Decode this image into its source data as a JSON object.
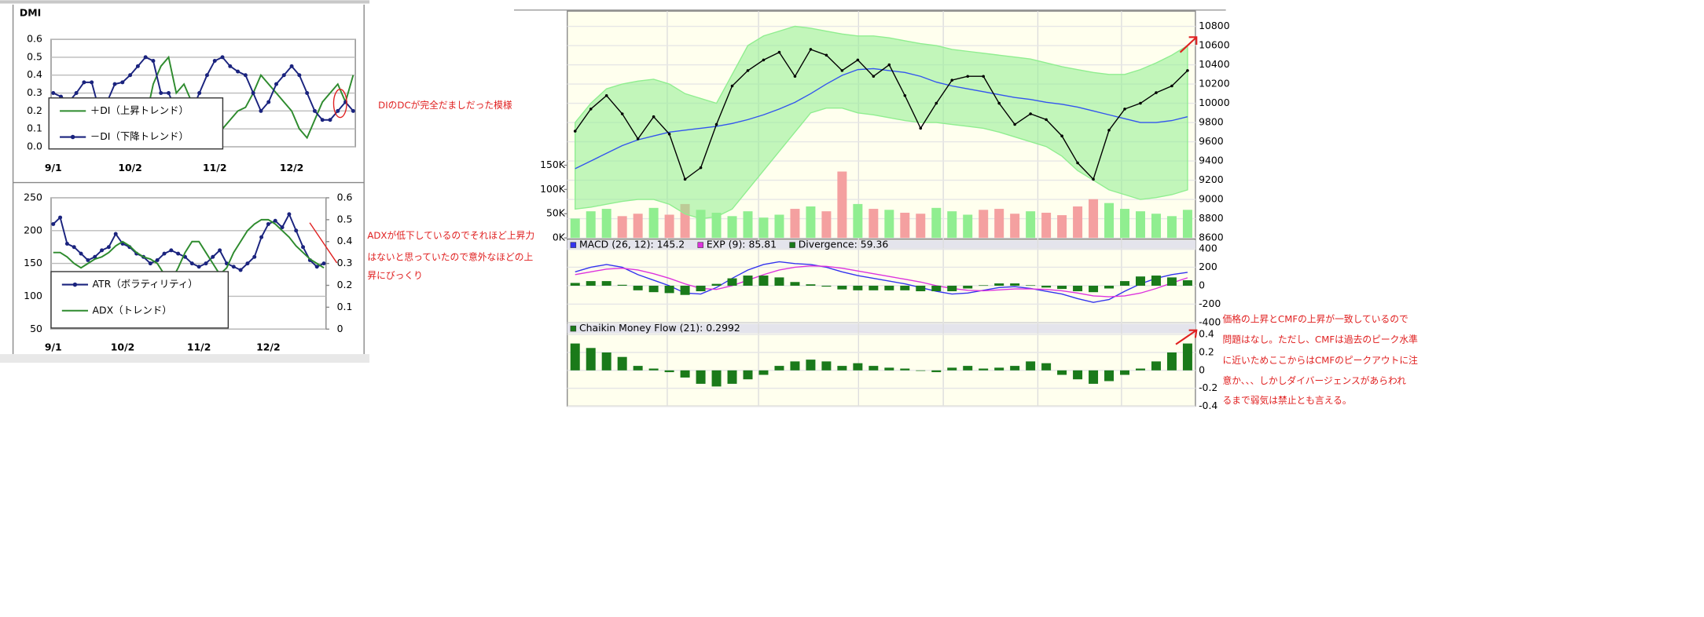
{
  "chart_data": [
    {
      "type": "line",
      "title": "DMI",
      "y_axis_side": "left",
      "grid": true,
      "legend": "box-lower-left",
      "categories": [
        "9/1",
        null,
        null,
        null,
        null,
        null,
        null,
        null,
        null,
        null,
        "10/2",
        null,
        null,
        null,
        null,
        null,
        null,
        null,
        null,
        null,
        null,
        "11/2",
        null,
        null,
        null,
        null,
        null,
        null,
        null,
        null,
        null,
        "12/2",
        null,
        null,
        null,
        null,
        null,
        null,
        null,
        null
      ],
      "ylim": [
        0,
        0.6
      ],
      "yticks": [
        {
          "value": 0,
          "label": "0.0"
        },
        0.1,
        0.2,
        0.3,
        0.4,
        0.5,
        0.6
      ],
      "series": [
        {
          "name": "＋DI（上昇トレンド）",
          "color": "#2e8b2e",
          "marker": false,
          "values": [
            0.2,
            0.22,
            0.25,
            0.2,
            0.15,
            0.15,
            0.25,
            0.2,
            0.12,
            0.1,
            0.08,
            0.1,
            0.15,
            0.35,
            0.45,
            0.5,
            0.3,
            0.35,
            0.25,
            0.2,
            0.12,
            0.08,
            0.1,
            0.15,
            0.2,
            0.22,
            0.3,
            0.4,
            0.35,
            0.3,
            0.25,
            0.2,
            0.1,
            0.05,
            0.15,
            0.25,
            0.3,
            0.35,
            0.25,
            0.4
          ]
        },
        {
          "name": "－DI（下降トレンド）",
          "color": "#1a237e",
          "marker": true,
          "values": [
            0.3,
            0.28,
            0.25,
            0.3,
            0.36,
            0.36,
            0.2,
            0.25,
            0.35,
            0.36,
            0.4,
            0.45,
            0.5,
            0.48,
            0.3,
            0.3,
            0.2,
            0.15,
            0.2,
            0.3,
            0.4,
            0.48,
            0.5,
            0.45,
            0.42,
            0.4,
            0.3,
            0.2,
            0.25,
            0.35,
            0.4,
            0.45,
            0.4,
            0.3,
            0.2,
            0.15,
            0.15,
            0.2,
            0.25,
            0.2
          ]
        }
      ]
    },
    {
      "type": "line",
      "y_axis_side": "left",
      "y2_axis_side": "right",
      "grid": true,
      "legend": "box-lower-left",
      "categories": [
        "9/1",
        null,
        null,
        null,
        null,
        null,
        null,
        null,
        null,
        null,
        "10/2",
        null,
        null,
        null,
        null,
        null,
        null,
        null,
        null,
        null,
        null,
        "11/2",
        null,
        null,
        null,
        null,
        null,
        null,
        null,
        null,
        null,
        "12/2",
        null,
        null,
        null,
        null,
        null,
        null,
        null,
        null
      ],
      "ylim": [
        50,
        250
      ],
      "yticks": [
        50,
        100,
        150,
        200,
        250
      ],
      "y2lim": [
        0,
        0.6
      ],
      "y2ticks": [
        0,
        0.1,
        0.2,
        0.3,
        0.4,
        0.5,
        0.6
      ],
      "series": [
        {
          "name": "ATR（ボラティリティ）",
          "color": "#1a237e",
          "marker": true,
          "values": [
            210,
            220,
            180,
            175,
            165,
            155,
            160,
            170,
            175,
            195,
            180,
            175,
            165,
            160,
            150,
            155,
            165,
            170,
            165,
            160,
            150,
            145,
            150,
            160,
            170,
            150,
            145,
            140,
            150,
            160,
            190,
            210,
            215,
            205,
            225,
            200,
            175,
            155,
            145,
            150
          ]
        },
        {
          "name": "ADX（トレンド）",
          "color": "#2e8b2e",
          "marker": false,
          "axis": "y2",
          "values": [
            0.35,
            0.35,
            0.33,
            0.3,
            0.28,
            0.3,
            0.32,
            0.33,
            0.35,
            0.38,
            0.4,
            0.38,
            0.35,
            0.33,
            0.32,
            0.3,
            0.25,
            0.22,
            0.28,
            0.35,
            0.4,
            0.4,
            0.35,
            0.3,
            0.25,
            0.28,
            0.35,
            0.4,
            0.45,
            0.48,
            0.5,
            0.5,
            0.48,
            0.45,
            0.42,
            0.38,
            0.35,
            0.32,
            0.3,
            0.28
          ]
        }
      ]
    },
    {
      "type": "combo",
      "y_axis_side": "right",
      "y2_axis_side": "left",
      "grid": true,
      "categories": [
        null,
        null,
        null,
        null,
        null,
        null,
        null,
        null,
        null,
        null,
        null,
        null,
        null,
        null,
        null,
        null,
        null,
        null,
        null,
        null,
        null,
        null,
        null,
        null,
        null,
        null,
        null,
        null,
        null,
        null,
        null,
        null,
        null,
        null,
        null,
        null,
        null,
        null,
        null,
        null
      ],
      "ylim": [
        8600,
        10800
      ],
      "yticks": [
        8600,
        8800,
        9000,
        9200,
        9400,
        9600,
        9800,
        10000,
        10200,
        10400,
        10600,
        10800
      ],
      "y2lim": [
        0,
        150000
      ],
      "y2ticks": [
        {
          "value": 0,
          "label": "0K"
        },
        {
          "value": 50000,
          "label": "50K"
        },
        {
          "value": 100000,
          "label": "100K"
        },
        {
          "value": 150000,
          "label": "150K"
        }
      ],
      "series": [
        {
          "type": "bar",
          "axis": "y2",
          "colors": [
            "#90ee90",
            "#90ee90",
            "#90ee90",
            "#f4a0a0",
            "#f4a0a0",
            "#90ee90",
            "#f4a0a0",
            "#f4a0a0",
            "#90ee90",
            "#90ee90",
            "#90ee90",
            "#90ee90",
            "#90ee90",
            "#90ee90",
            "#f4a0a0",
            "#90ee90",
            "#f4a0a0",
            "#f4a0a0",
            "#90ee90",
            "#f4a0a0",
            "#90ee90",
            "#f4a0a0",
            "#f4a0a0",
            "#90ee90",
            "#90ee90",
            "#90ee90",
            "#f4a0a0",
            "#f4a0a0",
            "#f4a0a0",
            "#90ee90",
            "#f4a0a0",
            "#f4a0a0",
            "#f4a0a0",
            "#f4a0a0",
            "#90ee90",
            "#90ee90",
            "#90ee90",
            "#90ee90",
            "#90ee90",
            "#90ee90"
          ],
          "values": [
            40000,
            55000,
            60000,
            45000,
            50000,
            62000,
            48000,
            70000,
            58000,
            52000,
            45000,
            55000,
            42000,
            48000,
            60000,
            65000,
            55000,
            137000,
            70000,
            60000,
            58000,
            52000,
            50000,
            62000,
            55000,
            48000,
            58000,
            60000,
            50000,
            55000,
            52000,
            47000,
            65000,
            80000,
            72000,
            60000,
            55000,
            50000,
            45000,
            58000
          ]
        },
        {
          "type": "area",
          "color": "#90ee90",
          "values": [
            9800,
            10000,
            10150,
            10200,
            10230,
            10250,
            10200,
            10100,
            10050,
            10000,
            10300,
            10600,
            10700,
            10750,
            10800,
            10780,
            10750,
            10720,
            10700,
            10700,
            10680,
            10650,
            10620,
            10600,
            10560,
            10540,
            10520,
            10500,
            10480,
            10460,
            10420,
            10380,
            10350,
            10320,
            10300,
            10300,
            10350,
            10420,
            10500,
            10600
          ],
          "lower": [
            8900,
            8920,
            8950,
            8980,
            9000,
            9000,
            8950,
            8850,
            8800,
            8820,
            8900,
            9100,
            9300,
            9500,
            9700,
            9900,
            9950,
            9950,
            9900,
            9880,
            9850,
            9820,
            9800,
            9800,
            9780,
            9760,
            9740,
            9700,
            9650,
            9600,
            9550,
            9450,
            9300,
            9200,
            9100,
            9050,
            9000,
            9020,
            9050,
            9100
          ]
        },
        {
          "type": "line",
          "color": "#3355ee",
          "values": [
            9320,
            9400,
            9480,
            9560,
            9620,
            9660,
            9700,
            9720,
            9740,
            9760,
            9790,
            9830,
            9880,
            9940,
            10010,
            10100,
            10200,
            10290,
            10350,
            10360,
            10340,
            10320,
            10280,
            10220,
            10180,
            10150,
            10120,
            10090,
            10060,
            10040,
            10010,
            9990,
            9960,
            9920,
            9880,
            9840,
            9800,
            9800,
            9820,
            9860
          ]
        },
        {
          "type": "line",
          "color": "#000000",
          "marker": true,
          "values": [
            9710,
            9940,
            10080,
            9890,
            9630,
            9860,
            9680,
            9210,
            9330,
            9780,
            10180,
            10340,
            10450,
            10530,
            10280,
            10560,
            10500,
            10340,
            10450,
            10280,
            10400,
            10080,
            9740,
            10000,
            10240,
            10280,
            10280,
            10000,
            9780,
            9890,
            9830,
            9660,
            9380,
            9210,
            9720,
            9940,
            10000,
            10110,
            10180,
            10340
          ]
        }
      ]
    },
    {
      "type": "combo",
      "y_axis_side": "right",
      "grid": true,
      "legend": "header",
      "categories": [
        null,
        null,
        null,
        null,
        null,
        null,
        null,
        null,
        null,
        null,
        null,
        null,
        null,
        null,
        null,
        null,
        null,
        null,
        null,
        null,
        null,
        null,
        null,
        null,
        null,
        null,
        null,
        null,
        null,
        null,
        null,
        null,
        null,
        null,
        null,
        null,
        null,
        null,
        null,
        null
      ],
      "ylim": [
        -400,
        400
      ],
      "yticks": [
        400,
        200,
        0,
        -200,
        -400
      ],
      "series": [
        {
          "name": "MACD (26, 12): 145.2",
          "type": "line",
          "color": "#3333ee",
          "values": [
            150,
            200,
            230,
            200,
            120,
            60,
            0,
            -80,
            -90,
            -20,
            80,
            170,
            230,
            260,
            240,
            230,
            200,
            150,
            110,
            80,
            50,
            20,
            -20,
            -60,
            -90,
            -80,
            -50,
            -20,
            -10,
            -30,
            -60,
            -90,
            -140,
            -180,
            -150,
            -60,
            20,
            80,
            120,
            145
          ]
        },
        {
          "name": "EXP (9): 85.81",
          "type": "line",
          "color": "#dd33dd",
          "values": [
            120,
            150,
            180,
            190,
            170,
            130,
            80,
            20,
            -30,
            -40,
            0,
            60,
            120,
            170,
            200,
            215,
            210,
            190,
            160,
            130,
            100,
            70,
            40,
            0,
            -30,
            -50,
            -55,
            -45,
            -35,
            -35,
            -40,
            -55,
            -80,
            -110,
            -120,
            -110,
            -80,
            -30,
            30,
            86
          ]
        },
        {
          "name": "Divergence: 59.36",
          "type": "bar",
          "color": "#1a7a1a",
          "values": [
            30,
            50,
            50,
            10,
            -50,
            -70,
            -80,
            -100,
            -60,
            20,
            80,
            110,
            110,
            90,
            40,
            15,
            -10,
            -40,
            -50,
            -50,
            -50,
            -50,
            -60,
            -60,
            -60,
            -30,
            5,
            25,
            25,
            5,
            -20,
            -35,
            -60,
            -70,
            -30,
            50,
            100,
            110,
            90,
            59
          ]
        }
      ]
    },
    {
      "type": "bar",
      "y_axis_side": "right",
      "grid": true,
      "legend": "header",
      "categories": [
        null,
        null,
        null,
        null,
        null,
        null,
        null,
        null,
        null,
        null,
        null,
        null,
        null,
        null,
        null,
        null,
        null,
        null,
        null,
        null,
        null,
        null,
        null,
        null,
        null,
        null,
        null,
        null,
        null,
        null,
        null,
        null,
        null,
        null,
        null,
        null,
        null,
        null,
        null,
        null
      ],
      "ylim": [
        -0.4,
        0.4
      ],
      "yticks": [
        0.4,
        0.2,
        0,
        -0.2,
        -0.4
      ],
      "series": [
        {
          "name": "Chaikin Money Flow (21): 0.2992",
          "color": "#1a7a1a",
          "values": [
            0.3,
            0.25,
            0.2,
            0.15,
            0.05,
            0.02,
            -0.02,
            -0.08,
            -0.15,
            -0.18,
            -0.15,
            -0.1,
            -0.05,
            0.05,
            0.1,
            0.12,
            0.1,
            0.05,
            0.08,
            0.05,
            0.03,
            0.02,
            0.0,
            -0.02,
            0.03,
            0.05,
            0.02,
            0.03,
            0.05,
            0.1,
            0.08,
            -0.05,
            -0.1,
            -0.15,
            -0.12,
            -0.05,
            0.02,
            0.1,
            0.2,
            0.3
          ]
        }
      ]
    }
  ],
  "annotations": [
    "DIのDCが完全だましだった模様",
    "ADXが低下しているのでそれほど上昇力",
    "はないと思っていたので意外なほどの上",
    "昇にびっくり",
    "価格の上昇とCMFの上昇が一致しているので",
    "問題はなし。ただし、CMFは過去のピーク水準",
    "に近いためここからはCMFのピークアウトに注",
    "意か、、、しかしダイバージェンスがあらわれ",
    "るまで弱気は禁止とも言える。"
  ]
}
